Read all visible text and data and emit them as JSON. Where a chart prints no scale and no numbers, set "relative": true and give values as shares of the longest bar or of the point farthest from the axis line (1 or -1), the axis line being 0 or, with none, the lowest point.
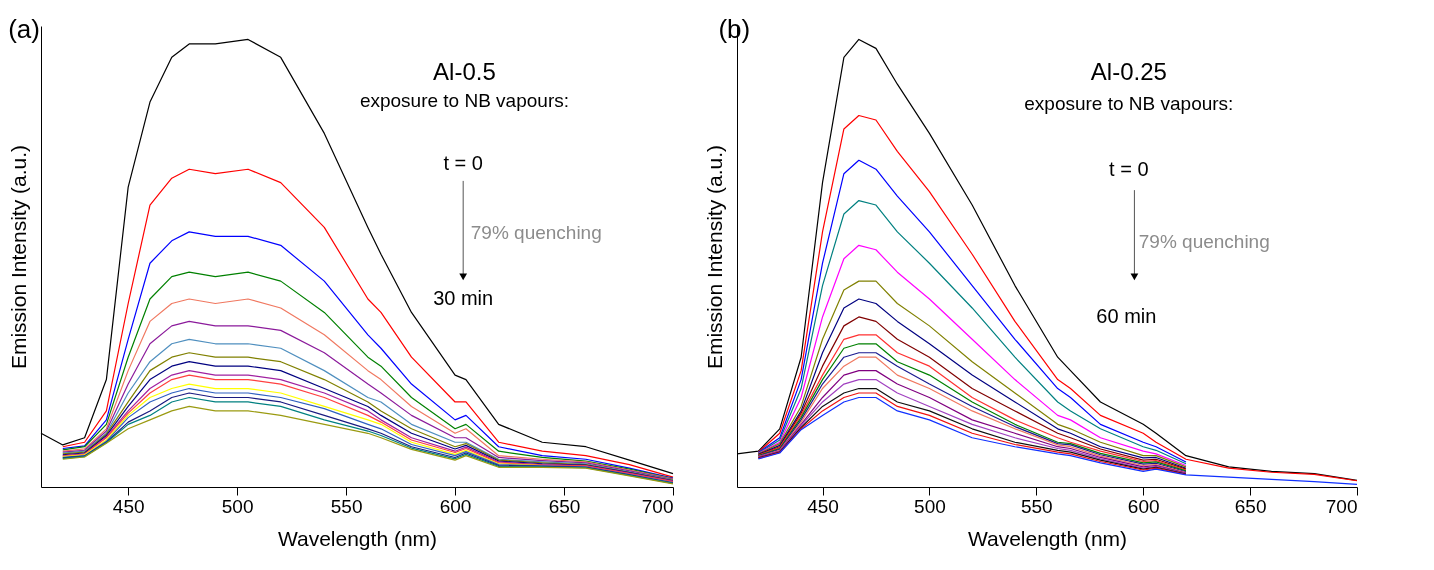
{
  "chart_data": [
    {
      "type": "line",
      "xlabel": "Wavelength (nm)",
      "ylabel": "Emission Intensity (a.u.)",
      "relative": true,
      "xlim": [
        410,
        700
      ],
      "xticks": [
        450,
        500,
        550,
        600,
        650,
        700
      ],
      "marker": "none",
      "line_style": "solid",
      "annotations": [
        "(a)",
        "Al-0.5",
        "exposure to NB vapours:",
        "t = 0",
        "79% quenching",
        "30 min"
      ],
      "x": [
        410,
        420,
        430,
        440,
        450,
        460,
        470,
        478,
        490,
        505,
        520,
        540,
        560,
        566,
        580,
        600,
        605,
        620,
        640,
        660,
        680,
        700
      ],
      "series": [
        {
          "color": "#000000",
          "values": [
            0.12,
            0.094,
            0.11,
            0.24,
            0.67,
            0.86,
            0.96,
            0.99,
            0.99,
            1.0,
            0.96,
            0.79,
            0.58,
            0.52,
            0.39,
            0.25,
            0.24,
            0.14,
            0.1,
            0.09,
            0.06,
            0.03
          ]
        },
        {
          "color": "#ff0000",
          "values": [
            null,
            0.09,
            0.1,
            0.17,
            0.41,
            0.63,
            0.69,
            0.71,
            0.7,
            0.71,
            0.68,
            0.58,
            0.42,
            0.39,
            0.29,
            0.19,
            0.19,
            0.1,
            0.08,
            0.07,
            0.05,
            0.022
          ]
        },
        {
          "color": "#0000ff",
          "values": [
            null,
            0.086,
            0.092,
            0.15,
            0.33,
            0.5,
            0.55,
            0.57,
            0.56,
            0.56,
            0.54,
            0.46,
            0.34,
            0.31,
            0.23,
            0.15,
            0.16,
            0.09,
            0.07,
            0.062,
            0.042,
            0.02
          ]
        },
        {
          "color": "#008000",
          "values": [
            null,
            0.083,
            0.09,
            0.14,
            0.29,
            0.42,
            0.47,
            0.48,
            0.47,
            0.48,
            0.46,
            0.39,
            0.29,
            0.27,
            0.2,
            0.13,
            0.14,
            0.08,
            0.066,
            0.058,
            0.04,
            0.019
          ]
        },
        {
          "color": "#f07860",
          "values": [
            null,
            0.08,
            0.085,
            0.13,
            0.26,
            0.37,
            0.41,
            0.42,
            0.41,
            0.42,
            0.4,
            0.34,
            0.26,
            0.24,
            0.18,
            0.12,
            0.13,
            0.07,
            0.062,
            0.056,
            0.038,
            0.018
          ]
        },
        {
          "color": "#8b1a9b",
          "values": [
            null,
            0.078,
            0.082,
            0.125,
            0.23,
            0.32,
            0.36,
            0.37,
            0.36,
            0.36,
            0.35,
            0.3,
            0.23,
            0.21,
            0.16,
            0.11,
            0.11,
            0.066,
            0.059,
            0.054,
            0.036,
            0.017
          ]
        },
        {
          "color": "#4f8fbf",
          "values": [
            null,
            0.076,
            0.08,
            0.12,
            0.21,
            0.28,
            0.32,
            0.33,
            0.32,
            0.32,
            0.31,
            0.26,
            0.2,
            0.19,
            0.14,
            0.1,
            0.1,
            0.062,
            0.056,
            0.052,
            0.034,
            0.016
          ]
        },
        {
          "color": "#808000",
          "values": [
            null,
            0.074,
            0.078,
            0.118,
            0.19,
            0.26,
            0.29,
            0.3,
            0.29,
            0.29,
            0.28,
            0.24,
            0.19,
            0.17,
            0.13,
            0.09,
            0.097,
            0.06,
            0.054,
            0.05,
            0.033,
            0.015
          ]
        },
        {
          "color": "#000080",
          "values": [
            null,
            0.072,
            0.076,
            0.115,
            0.18,
            0.24,
            0.27,
            0.28,
            0.27,
            0.27,
            0.26,
            0.22,
            0.18,
            0.16,
            0.12,
            0.085,
            0.093,
            0.058,
            0.052,
            0.049,
            0.032,
            0.014
          ]
        },
        {
          "color": "#a020a0",
          "values": [
            null,
            0.07,
            0.074,
            0.112,
            0.17,
            0.22,
            0.25,
            0.26,
            0.25,
            0.25,
            0.24,
            0.21,
            0.17,
            0.15,
            0.11,
            0.08,
            0.089,
            0.056,
            0.05,
            0.048,
            0.031,
            0.013
          ]
        },
        {
          "color": "#ff4040",
          "values": [
            null,
            0.069,
            0.073,
            0.11,
            0.165,
            0.21,
            0.24,
            0.25,
            0.24,
            0.24,
            0.23,
            0.2,
            0.16,
            0.145,
            0.105,
            0.077,
            0.086,
            0.054,
            0.049,
            0.047,
            0.03,
            0.012
          ]
        },
        {
          "color": "#ffff00",
          "values": [
            null,
            0.068,
            0.072,
            0.105,
            0.16,
            0.2,
            0.22,
            0.23,
            0.22,
            0.22,
            0.21,
            0.18,
            0.15,
            0.14,
            0.1,
            0.073,
            0.082,
            0.052,
            0.048,
            null,
            null,
            null
          ]
        },
        {
          "color": "#3060c0",
          "values": [
            null,
            0.066,
            0.07,
            0.102,
            0.155,
            0.19,
            0.21,
            0.22,
            0.21,
            0.21,
            0.2,
            0.175,
            0.14,
            0.13,
            0.095,
            0.07,
            0.079,
            0.05,
            0.047,
            0.045,
            0.028,
            0.01
          ]
        },
        {
          "color": "#1a1a80",
          "values": [
            null,
            0.065,
            0.069,
            0.1,
            0.145,
            0.17,
            0.2,
            0.21,
            0.2,
            0.2,
            0.19,
            0.16,
            0.13,
            0.12,
            0.09,
            0.066,
            0.076,
            0.048,
            0.046,
            0.044,
            0.027,
            0.009
          ]
        },
        {
          "color": "#008080",
          "values": [
            null,
            0.064,
            0.068,
            0.099,
            0.14,
            0.16,
            0.19,
            0.2,
            0.19,
            0.19,
            0.18,
            0.15,
            0.125,
            0.115,
            0.087,
            0.063,
            0.073,
            0.046,
            0.045,
            0.043,
            0.026,
            0.008
          ]
        },
        {
          "color": "#9a9a10",
          "values": [
            null,
            0.062,
            0.067,
            0.098,
            0.13,
            0.15,
            0.17,
            0.18,
            0.17,
            0.17,
            0.16,
            0.14,
            0.12,
            0.11,
            0.084,
            0.06,
            0.07,
            0.044,
            0.044,
            0.042,
            0.025,
            0.007
          ]
        }
      ]
    },
    {
      "type": "line",
      "xlabel": "Wavelength (nm)",
      "ylabel": "Emission Intensity (a.u.)",
      "relative": true,
      "xlim": [
        410,
        700
      ],
      "xticks": [
        450,
        500,
        550,
        600,
        650,
        700
      ],
      "marker": "none",
      "line_style": "solid",
      "annotations": [
        "(b)",
        "Al-0.25",
        "exposure to NB vapours:",
        "t = 0",
        "79% quenching",
        "60 min"
      ],
      "x": [
        410,
        420,
        430,
        440,
        450,
        460,
        467,
        475,
        485,
        500,
        520,
        540,
        560,
        566,
        580,
        600,
        606,
        620,
        640,
        660,
        680,
        700
      ],
      "series": [
        {
          "color": "#000000",
          "values": [
            0.074,
            0.08,
            0.13,
            0.29,
            0.68,
            0.96,
            1.0,
            0.98,
            0.9,
            0.79,
            0.63,
            0.45,
            0.29,
            0.26,
            0.19,
            0.14,
            0.12,
            0.07,
            0.045,
            0.035,
            0.03,
            0.015
          ]
        },
        {
          "color": "#ff0000",
          "values": [
            null,
            0.078,
            0.12,
            0.26,
            0.57,
            0.8,
            0.83,
            0.82,
            0.75,
            0.66,
            0.52,
            0.37,
            0.24,
            0.22,
            0.16,
            0.12,
            0.1,
            0.062,
            0.042,
            0.033,
            0.028,
            0.014
          ]
        },
        {
          "color": "#0000ff",
          "values": [
            null,
            0.077,
            0.11,
            0.24,
            0.5,
            0.7,
            0.73,
            0.71,
            0.65,
            0.57,
            0.45,
            0.33,
            0.22,
            0.2,
            0.14,
            0.1,
            0.09,
            0.056,
            null,
            null,
            null,
            null
          ]
        },
        {
          "color": "#008080",
          "values": [
            null,
            0.076,
            0.105,
            0.22,
            0.45,
            0.61,
            0.64,
            0.63,
            0.57,
            0.5,
            0.4,
            0.29,
            0.19,
            0.17,
            0.13,
            0.09,
            0.082,
            0.052,
            null,
            null,
            null,
            null
          ]
        },
        {
          "color": "#ff00ff",
          "values": [
            null,
            0.075,
            0.1,
            0.2,
            0.38,
            0.51,
            0.54,
            0.53,
            0.48,
            0.42,
            0.33,
            0.24,
            0.16,
            0.15,
            0.11,
            0.08,
            0.074,
            0.048,
            null,
            null,
            null,
            null
          ]
        },
        {
          "color": "#808000",
          "values": [
            null,
            0.074,
            0.097,
            0.18,
            0.33,
            0.44,
            0.46,
            0.46,
            0.41,
            0.36,
            0.28,
            0.21,
            0.14,
            0.13,
            0.1,
            0.07,
            0.07,
            0.045,
            null,
            null,
            null,
            null
          ]
        },
        {
          "color": "#000080",
          "values": [
            null,
            0.073,
            0.093,
            0.17,
            0.3,
            0.4,
            0.42,
            0.41,
            0.37,
            0.32,
            0.25,
            0.19,
            0.13,
            0.12,
            0.09,
            0.065,
            0.066,
            0.042,
            null,
            null,
            null,
            null
          ]
        },
        {
          "color": "#800000",
          "values": [
            null,
            0.072,
            0.09,
            0.165,
            0.27,
            0.36,
            0.38,
            0.37,
            0.33,
            0.29,
            0.22,
            0.17,
            0.12,
            0.11,
            0.085,
            0.06,
            0.062,
            0.04,
            null,
            null,
            null,
            null
          ]
        },
        {
          "color": "#ff3030",
          "values": [
            null,
            0.071,
            0.088,
            0.16,
            0.25,
            0.33,
            0.34,
            0.34,
            0.3,
            0.27,
            0.2,
            0.15,
            0.11,
            0.1,
            0.08,
            0.057,
            0.059,
            0.038,
            null,
            null,
            null,
            null
          ]
        },
        {
          "color": "#008000",
          "values": [
            null,
            0.07,
            0.086,
            0.155,
            0.24,
            0.31,
            0.32,
            0.32,
            0.28,
            0.25,
            0.19,
            0.14,
            0.1,
            0.097,
            0.075,
            0.054,
            0.056,
            0.036,
            null,
            null,
            null,
            null
          ]
        },
        {
          "color": "#1a1a90",
          "values": [
            null,
            0.069,
            0.084,
            0.15,
            0.23,
            0.29,
            0.3,
            0.3,
            0.27,
            0.23,
            0.18,
            0.135,
            0.097,
            0.094,
            0.072,
            0.051,
            0.053,
            0.034,
            null,
            null,
            null,
            null
          ]
        },
        {
          "color": "#f07860",
          "values": [
            null,
            0.068,
            0.082,
            0.145,
            0.22,
            0.27,
            0.29,
            0.29,
            0.25,
            0.22,
            0.17,
            0.13,
            0.094,
            0.09,
            0.069,
            0.048,
            0.05,
            0.032,
            null,
            null,
            null,
            null
          ]
        },
        {
          "color": "#800080",
          "values": [
            null,
            0.067,
            0.08,
            0.14,
            0.2,
            0.25,
            0.26,
            0.26,
            0.23,
            0.2,
            0.15,
            0.12,
            0.09,
            0.086,
            0.066,
            0.045,
            0.048,
            0.031,
            null,
            null,
            null,
            null
          ]
        },
        {
          "color": "#a040c0",
          "values": [
            null,
            0.066,
            0.079,
            0.137,
            0.19,
            0.23,
            0.24,
            0.24,
            0.21,
            0.18,
            0.14,
            0.11,
            0.086,
            0.082,
            0.063,
            0.042,
            0.046,
            0.03,
            null,
            null,
            null,
            null
          ]
        },
        {
          "color": "#101010",
          "values": [
            null,
            0.065,
            0.078,
            0.133,
            0.18,
            0.21,
            0.22,
            0.22,
            0.19,
            0.17,
            0.13,
            0.1,
            0.082,
            0.078,
            0.06,
            0.04,
            0.044,
            0.029,
            null,
            null,
            null,
            null
          ]
        },
        {
          "color": "#ee1010",
          "values": [
            null,
            0.064,
            0.077,
            0.13,
            0.17,
            0.2,
            0.21,
            0.21,
            0.18,
            0.16,
            0.12,
            0.095,
            0.078,
            0.074,
            0.057,
            0.038,
            0.042,
            0.028,
            null,
            null,
            null,
            null
          ]
        },
        {
          "color": "#1030ff",
          "values": [
            null,
            0.063,
            0.076,
            0.128,
            0.16,
            0.19,
            0.2,
            0.2,
            0.17,
            0.15,
            0.11,
            0.09,
            0.074,
            0.07,
            0.054,
            0.035,
            0.04,
            0.027,
            0.022,
            0.017,
            0.012,
            0.006
          ]
        }
      ]
    }
  ]
}
